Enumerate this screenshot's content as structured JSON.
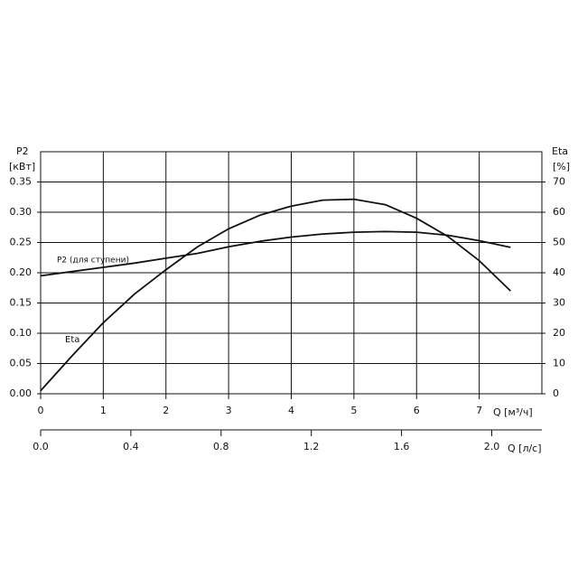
{
  "chart_data": {
    "type": "line",
    "y_label": "P2",
    "y_unit": "[кВт]",
    "y2_label": "Eta",
    "y2_unit": "[%]",
    "x_label": "Q [м³/ч]",
    "x2_label": "Q [л/с]",
    "x": [
      0,
      0.5,
      1,
      1.5,
      2,
      2.5,
      3,
      3.5,
      4,
      4.5,
      5,
      5.5,
      6,
      6.5,
      7,
      7.5
    ],
    "series": [
      {
        "name": "P2 (для ступени)",
        "color": "#111111",
        "values": [
          0.195,
          0.202,
          0.209,
          0.216,
          0.224,
          0.232,
          0.243,
          0.252,
          0.259,
          0.264,
          0.267,
          0.268,
          0.267,
          0.262,
          0.253,
          0.242
        ]
      },
      {
        "name": "Eta",
        "color": "#111111",
        "axis": "y2",
        "values": [
          1,
          12.5,
          23.5,
          33,
          41,
          48.5,
          54.5,
          59,
          62,
          64,
          64.3,
          62.5,
          58,
          52,
          44,
          34
        ]
      }
    ],
    "xlim": [
      0,
      8
    ],
    "xticks": [
      0,
      1,
      2,
      3,
      4,
      5,
      6,
      7
    ],
    "ylim": [
      0,
      0.4
    ],
    "yticks": [
      {
        "value": 0,
        "label": "0.00"
      },
      {
        "value": 0.05,
        "label": "0.05"
      },
      {
        "value": 0.1,
        "label": "0.10"
      },
      {
        "value": 0.15,
        "label": "0.15"
      },
      {
        "value": 0.2,
        "label": "0.20"
      },
      {
        "value": 0.25,
        "label": "0.25"
      },
      {
        "value": 0.3,
        "label": "0.30"
      },
      {
        "value": 0.35,
        "label": "0.35"
      }
    ],
    "y2lim": [
      0,
      80
    ],
    "y2ticks": [
      0,
      10,
      20,
      30,
      40,
      50,
      60,
      70
    ],
    "x2lim": [
      0,
      2.2222
    ],
    "x2ticks": [
      {
        "value": 0,
        "label": "0.0"
      },
      0.4,
      0.8,
      1.2,
      1.6,
      {
        "value": 2,
        "label": "2.0"
      }
    ],
    "grid": true
  }
}
